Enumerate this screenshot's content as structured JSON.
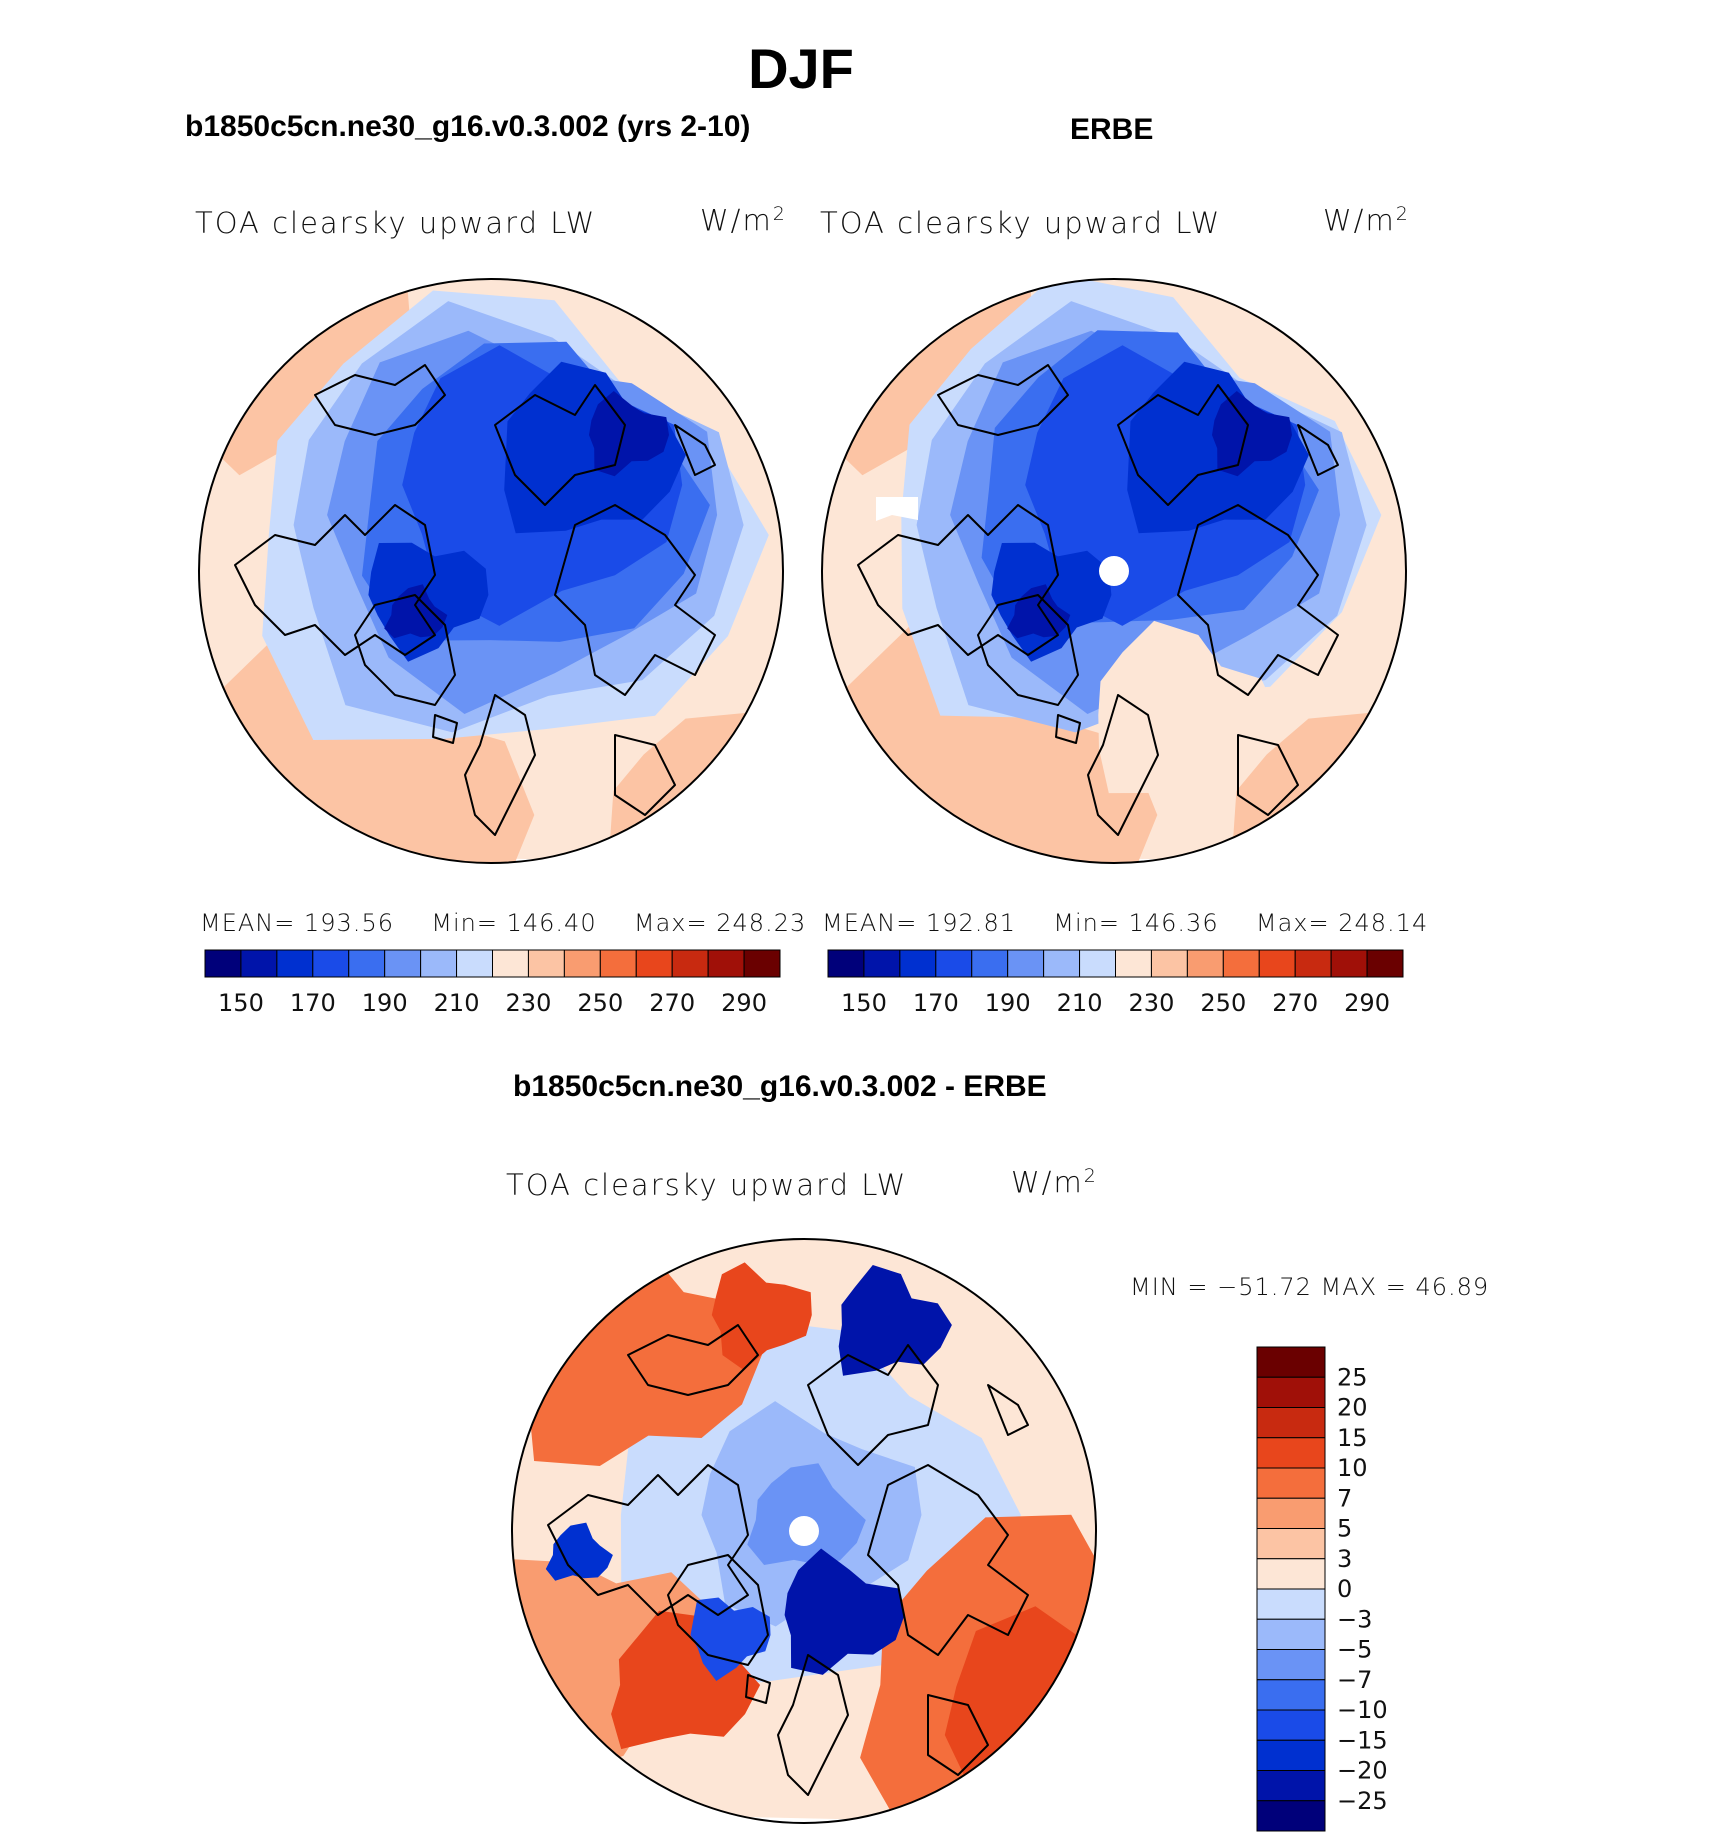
{
  "figure": {
    "title": "DJF"
  },
  "panels": {
    "model": {
      "title": "b1850c5cn.ne30_g16.v0.3.002 (yrs 2-10)",
      "variable": "TOA clearsky upward LW",
      "units_base": "W/m",
      "units_exp": "2",
      "stats": {
        "mean_label": "MEAN=",
        "mean": "193.56",
        "min_label": "Min=",
        "min": "146.40",
        "max_label": "Max=",
        "max": "248.23"
      }
    },
    "obs": {
      "title": "ERBE",
      "variable": "TOA clearsky upward LW",
      "units_base": "W/m",
      "units_exp": "2",
      "stats": {
        "mean_label": "MEAN=",
        "mean": "192.81",
        "min_label": "Min=",
        "min": "146.36",
        "max_label": "Max=",
        "max": "248.14"
      }
    },
    "diff": {
      "title": "b1850c5cn.ne30_g16.v0.3.002 - ERBE",
      "variable": "TOA clearsky upward LW",
      "units_base": "W/m",
      "units_exp": "2",
      "minmax": "MIN = −51.72 MAX =   46.89"
    }
  },
  "chart_data": [
    {
      "type": "heatmap",
      "projection": "north polar stereographic",
      "title": "b1850c5cn.ne30_g16.v0.3.002 (yrs 2-10)",
      "variable": "TOA clearsky upward LW",
      "units": "W/m2",
      "mean": 193.56,
      "min": 146.4,
      "max": 248.23,
      "levels": [
        150,
        160,
        170,
        180,
        190,
        200,
        210,
        220,
        230,
        240,
        250,
        260,
        270,
        280,
        290
      ],
      "colorbar_tick_labels": [
        "150",
        "170",
        "190",
        "210",
        "230",
        "250",
        "270",
        "290"
      ],
      "colors": [
        "#00007a",
        "#0014aa",
        "#0030d0",
        "#1a4be8",
        "#3a6ef0",
        "#6a93f5",
        "#9bb9fa",
        "#c9dcfd",
        "#fde6d6",
        "#fcc4a4",
        "#f99c70",
        "#f46e3c",
        "#e8461c",
        "#c82a10",
        "#a01008",
        "#6a0000"
      ]
    },
    {
      "type": "heatmap",
      "projection": "north polar stereographic",
      "title": "ERBE",
      "variable": "TOA clearsky upward LW",
      "units": "W/m2",
      "mean": 192.81,
      "min": 146.36,
      "max": 248.14,
      "levels": [
        150,
        160,
        170,
        180,
        190,
        200,
        210,
        220,
        230,
        240,
        250,
        260,
        270,
        280,
        290
      ],
      "colorbar_tick_labels": [
        "150",
        "170",
        "190",
        "210",
        "230",
        "250",
        "270",
        "290"
      ],
      "colors": [
        "#00007a",
        "#0014aa",
        "#0030d0",
        "#1a4be8",
        "#3a6ef0",
        "#6a93f5",
        "#9bb9fa",
        "#c9dcfd",
        "#fde6d6",
        "#fcc4a4",
        "#f99c70",
        "#f46e3c",
        "#e8461c",
        "#c82a10",
        "#a01008",
        "#6a0000"
      ]
    },
    {
      "type": "heatmap",
      "projection": "north polar stereographic",
      "title": "b1850c5cn.ne30_g16.v0.3.002 - ERBE",
      "variable": "TOA clearsky upward LW",
      "units": "W/m2",
      "min": -51.72,
      "max": 46.89,
      "levels": [
        -25,
        -20,
        -15,
        -10,
        -7,
        -5,
        -3,
        0,
        3,
        5,
        7,
        10,
        15,
        20,
        25
      ],
      "colorbar_tick_labels": [
        "25",
        "20",
        "15",
        "10",
        "7",
        "5",
        "3",
        "0",
        "−3",
        "−5",
        "−7",
        "−10",
        "−15",
        "−20",
        "−25"
      ],
      "colors": [
        "#00007a",
        "#0014aa",
        "#0030d0",
        "#1a4be8",
        "#3a6ef0",
        "#6a93f5",
        "#9bb9fa",
        "#c9dcfd",
        "#fde6d6",
        "#fcc4a4",
        "#f99c70",
        "#f46e3c",
        "#e8461c",
        "#c82a10",
        "#a01008",
        "#6a0000"
      ]
    }
  ]
}
